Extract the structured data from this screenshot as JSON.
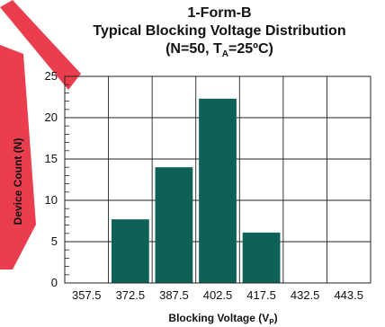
{
  "chart_data": {
    "type": "bar",
    "title_line1": "1-Form-B",
    "title_line2": "Typical Blocking Voltage Distribution",
    "title_line3_prefix": "(N=50, T",
    "title_line3_sub": "A",
    "title_line3_suffix": "=25ºC)",
    "xlabel_main": "Blocking Voltage (V",
    "xlabel_sub": "P",
    "xlabel_end": ")",
    "ylabel": "Device Count (N)",
    "categories": [
      "357.5",
      "372.5",
      "387.5",
      "402.5",
      "417.5",
      "432.5",
      "443.5"
    ],
    "values": [
      0,
      7.7,
      14,
      22.3,
      6.1,
      0,
      0
    ],
    "yticks": [
      "0",
      "5",
      "10",
      "15",
      "20",
      "25"
    ],
    "ylim": [
      0,
      25
    ],
    "grid": true,
    "bar_color": "#0d6157"
  },
  "watermark_color": "#e8293c"
}
